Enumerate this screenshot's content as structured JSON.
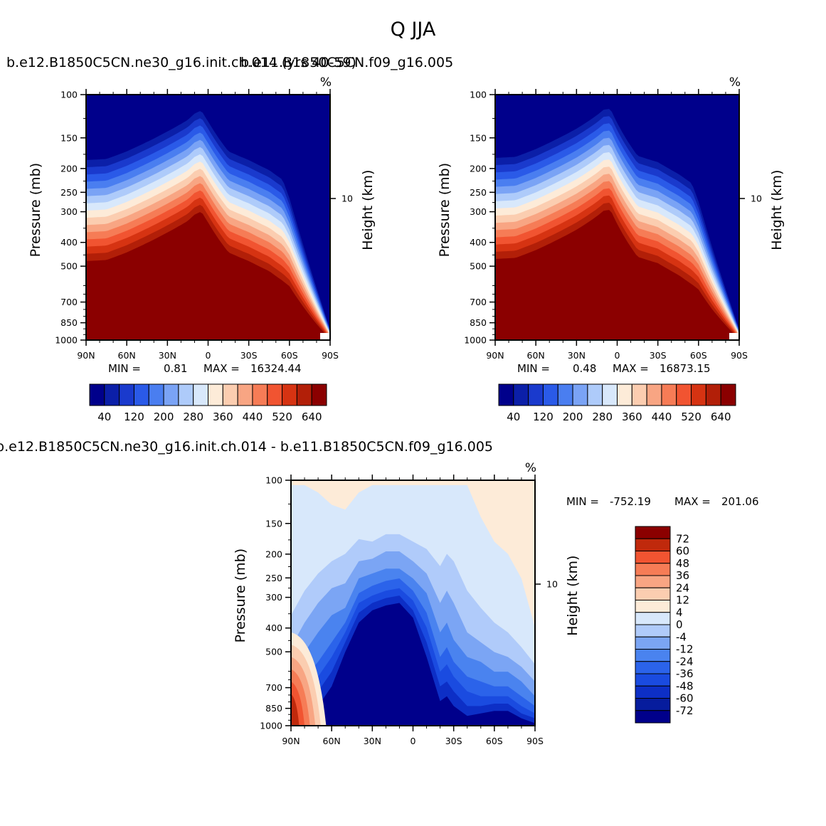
{
  "figure": {
    "title": "Q  JJA",
    "panel1_label": "b.e12.B1850C5CN.ne30_g16.init.ch.014 (yrs 40-59)",
    "panel2_label": "b.e11.B1850C5CN.f09_g16.005",
    "diff_label": "b.e12.B1850C5CN.ne30_g16.init.ch.014 - b.e11.B1850C5CN.f09_g16.005"
  },
  "colors": {
    "abs_scale": [
      "#00008b",
      "#0b1fa8",
      "#1a3acd",
      "#2a5ae8",
      "#4a7ef0",
      "#7aa3f5",
      "#aecbfa",
      "#d8e8fb",
      "#fdebd8",
      "#fbcdb0",
      "#f8a583",
      "#f67c56",
      "#f15431",
      "#d63312",
      "#b21f08",
      "#8b0000"
    ],
    "diff_scale": [
      "#00008b",
      "#061c9d",
      "#0d2fc6",
      "#1a4be0",
      "#2b63ea",
      "#4a83ef",
      "#7ba5f4",
      "#b0cbfa",
      "#d8e8fb",
      "#fdebd8",
      "#fbcdb0",
      "#f8a583",
      "#f67c56",
      "#f15431",
      "#c0290c",
      "#8b0000"
    ]
  },
  "chart_data": [
    {
      "type": "contour",
      "panel": "upper-left",
      "variable": "Q",
      "units": "%",
      "xlabel": "",
      "ylabel": "Pressure (mb)",
      "y2label": "Height (km)",
      "x_ticks": [
        "90N",
        "60N",
        "30N",
        "0",
        "30S",
        "60S",
        "90S"
      ],
      "y_ticks": [
        "100",
        "150",
        "200",
        "250",
        "300",
        "400",
        "500",
        "700",
        "850",
        "1000"
      ],
      "y2_ticks": [
        "10"
      ],
      "ylim": [
        1000,
        100
      ],
      "min_label": "MIN =",
      "min_value": "0.81",
      "max_label": "MAX =",
      "max_value": "16324.44",
      "colorbar_labels": [
        "40",
        "120",
        "200",
        "280",
        "360",
        "440",
        "520",
        "640"
      ],
      "boundary_lat": [
        90,
        75,
        60,
        45,
        30,
        15,
        10,
        5,
        0,
        -15,
        -30,
        -45,
        -60,
        -70,
        -80,
        -90
      ],
      "boundary_p": [
        510,
        505,
        470,
        430,
        390,
        350,
        330,
        320,
        355,
        470,
        510,
        560,
        640,
        760,
        880,
        1000
      ],
      "peak": "10N"
    },
    {
      "type": "contour",
      "panel": "upper-right",
      "variable": "Q",
      "units": "%",
      "xlabel": "",
      "ylabel": "Pressure (mb)",
      "y2label": "Height (km)",
      "x_ticks": [
        "90N",
        "60N",
        "30N",
        "0",
        "30S",
        "60S",
        "90S"
      ],
      "y_ticks": [
        "100",
        "150",
        "200",
        "250",
        "300",
        "400",
        "500",
        "700",
        "850",
        "1000"
      ],
      "y2_ticks": [
        "10"
      ],
      "ylim": [
        1000,
        100
      ],
      "min_label": "MIN =",
      "min_value": "0.48",
      "max_label": "MAX =",
      "max_value": "16873.15",
      "colorbar_labels": [
        "40",
        "120",
        "200",
        "280",
        "360",
        "440",
        "520",
        "640"
      ],
      "boundary_lat": [
        90,
        75,
        60,
        45,
        30,
        15,
        10,
        5,
        0,
        -15,
        -30,
        -45,
        -60,
        -70,
        -80,
        -90
      ],
      "boundary_p": [
        500,
        495,
        460,
        420,
        380,
        335,
        318,
        315,
        360,
        490,
        520,
        580,
        660,
        780,
        890,
        1000
      ],
      "peak": "10N"
    },
    {
      "type": "contour",
      "panel": "difference",
      "variable": "Q",
      "units": "%",
      "xlabel": "",
      "ylabel": "Pressure (mb)",
      "y2label": "Height (km)",
      "x_ticks": [
        "90N",
        "60N",
        "30N",
        "0",
        "30S",
        "60S",
        "90S"
      ],
      "y_ticks": [
        "100",
        "150",
        "200",
        "250",
        "300",
        "400",
        "500",
        "700",
        "850",
        "1000"
      ],
      "y2_ticks": [
        "10"
      ],
      "ylim": [
        1000,
        100
      ],
      "min_label": "MIN =",
      "min_value": "-752.19",
      "max_label": "MAX =",
      "max_value": "201.06",
      "colorbar_labels": [
        "72",
        "60",
        "48",
        "36",
        "24",
        "12",
        "4",
        "0",
        "-4",
        "-12",
        "-24",
        "-36",
        "-48",
        "-60",
        "-72"
      ]
    }
  ]
}
